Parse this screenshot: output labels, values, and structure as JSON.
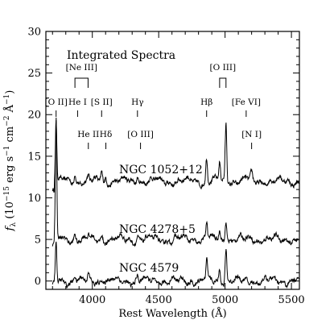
{
  "chart_data": {
    "type": "line",
    "title": "Integrated Spectra",
    "xlabel": "Rest Wavelength (Å)",
    "ylabel": "f_λ (10⁻¹⁵ erg s⁻¹ cm⁻² Å⁻¹)",
    "ylabel_parts": {
      "main": "f",
      "sub": "λ",
      "p1": " (10",
      "e1": "−15",
      "p2": " erg s",
      "e2": "−1",
      "p3": " cm",
      "e3": "−2",
      "p4": " Å",
      "e4": "−1",
      "p5": ")"
    },
    "xlim": [
      3650,
      5560
    ],
    "ylim": [
      -1,
      30
    ],
    "xticks": [
      4000,
      4500,
      5000,
      5500
    ],
    "yticks": [
      0,
      5,
      10,
      15,
      20,
      25,
      30
    ],
    "xtick_labels": [
      "4000",
      "4500",
      "5000",
      "5500"
    ],
    "ytick_labels": [
      "0",
      "5",
      "10",
      "15",
      "20",
      "25",
      "30"
    ],
    "series": [
      {
        "label": "NGC 1052+12",
        "offset": 12,
        "lines": [
          [
            3727,
            7.5
          ],
          [
            3869,
            1.2
          ],
          [
            3970,
            0.6
          ],
          [
            4070,
            1.3
          ],
          [
            4102,
            0.5
          ],
          [
            4340,
            0.9
          ],
          [
            4363,
            0.4
          ],
          [
            4861,
            2.8
          ],
          [
            4959,
            2.2
          ],
          [
            5007,
            6.9
          ],
          [
            5159,
            0.4
          ],
          [
            5200,
            0.9
          ]
        ]
      },
      {
        "label": "NGC 4278+5",
        "offset": 5,
        "lines": [
          [
            3727,
            14.3
          ],
          [
            3869,
            0.8
          ],
          [
            3970,
            0.4
          ],
          [
            4070,
            0.7
          ],
          [
            4340,
            0.5
          ],
          [
            4861,
            2.2
          ],
          [
            4959,
            1.0
          ],
          [
            5007,
            2.7
          ],
          [
            5200,
            0.5
          ]
        ]
      },
      {
        "label": "NGC 4579",
        "offset": 0,
        "lines": [
          [
            3727,
            4.8
          ],
          [
            3869,
            0.9
          ],
          [
            3970,
            0.6
          ],
          [
            4070,
            0.6
          ],
          [
            4340,
            0.6
          ],
          [
            4861,
            2.4
          ],
          [
            4959,
            1.9
          ],
          [
            5007,
            4.0
          ],
          [
            5200,
            0.4
          ]
        ]
      }
    ],
    "annotations": [
      {
        "label": "[O II]",
        "wl": 3727,
        "y": 20.4,
        "row": "upper"
      },
      {
        "label": "He I",
        "wl": 3889,
        "y": 20.4,
        "row": "upper"
      },
      {
        "label": "[S II]",
        "wl": 4070,
        "y": 20.4,
        "row": "upper"
      },
      {
        "label": "Hγ",
        "wl": 4340,
        "y": 20.4,
        "row": "upper"
      },
      {
        "label": "Hβ",
        "wl": 4861,
        "y": 20.4,
        "row": "upper"
      },
      {
        "label": "[Fe VI]",
        "wl": 5159,
        "y": 20.4,
        "row": "upper"
      },
      {
        "label": "He II",
        "wl": 3970,
        "y": 17.6,
        "row": "lower"
      },
      {
        "label": "Hδ",
        "wl": 4102,
        "y": 17.6,
        "row": "lower"
      },
      {
        "label": "[O III]",
        "wl": 4363,
        "y": 17.6,
        "row": "lower"
      },
      {
        "label": "[N I]",
        "wl": 5200,
        "y": 17.6,
        "row": "lower"
      }
    ],
    "bracket_annotations": [
      {
        "label": "[Ne III]",
        "wl_left": 3869,
        "wl_right": 3968,
        "y": 24.4
      },
      {
        "label": "[O III]",
        "wl_left": 4959,
        "wl_right": 5007,
        "y": 24.4
      }
    ]
  }
}
